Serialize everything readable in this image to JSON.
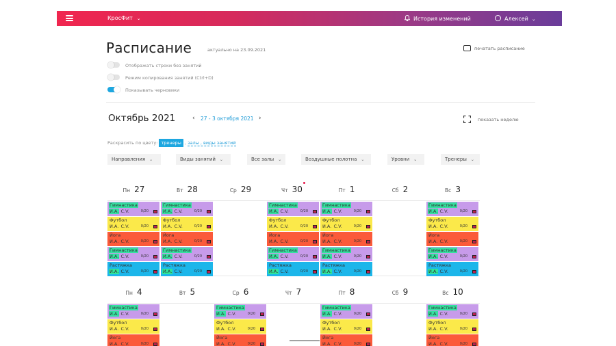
{
  "topbar": {
    "brand": "КросФит",
    "history": "История изменений",
    "user": "Алексей"
  },
  "page": {
    "title": "Расписание",
    "updated": "актуально на 23.09.2021",
    "print": "печатать расписание"
  },
  "toggles": [
    {
      "label": "Отображать строки без занятий",
      "on": false
    },
    {
      "label": "Режим копирования занятий (Ctrl+D)",
      "on": false
    },
    {
      "label": "Показывать черновики",
      "on": true
    }
  ],
  "calendar": {
    "month": "Октябрь 2021",
    "range": "27 - 3 октября 2021",
    "show_week": "показать неделю"
  },
  "color_by": {
    "label": "Раскрасить по цвету:",
    "active": "тренеры",
    "sep": ",",
    "rest": "залы , виды занятий"
  },
  "filters": [
    "Направления",
    "Виды занятий",
    "Все залы",
    "Воздушные полотна",
    "Уровни",
    "Тренеры"
  ],
  "weeks": [
    {
      "days": [
        {
          "wd": "Пн",
          "num": "27"
        },
        {
          "wd": "Вт",
          "num": "28"
        },
        {
          "wd": "Ср",
          "num": "29"
        },
        {
          "wd": "Чт",
          "num": "30"
        },
        {
          "wd": "Пт",
          "num": "1"
        },
        {
          "wd": "Сб",
          "num": "2"
        },
        {
          "wd": "Вс",
          "num": "3"
        }
      ]
    },
    {
      "days": [
        {
          "wd": "Пн",
          "num": "4"
        },
        {
          "wd": "Вт",
          "num": "5"
        },
        {
          "wd": "Ср",
          "num": "6"
        },
        {
          "wd": "Чт",
          "num": "7"
        },
        {
          "wd": "Пт",
          "num": "8"
        },
        {
          "wd": "Сб",
          "num": "9"
        },
        {
          "wd": "Вс",
          "num": "10"
        }
      ]
    }
  ],
  "sessions": {
    "gym": "Гимнастика",
    "football": "Футбол",
    "yoga": "Йога",
    "stretch": "Растяжка",
    "trainer_ini": "И.А.",
    "trainer_ini2": "С.V.",
    "capacity": "0/20",
    "colors": {
      "gym": "#c79bea",
      "football": "#fbe94a",
      "yoga": "#fb5a3a",
      "stretch": "#1cb6ea"
    }
  }
}
